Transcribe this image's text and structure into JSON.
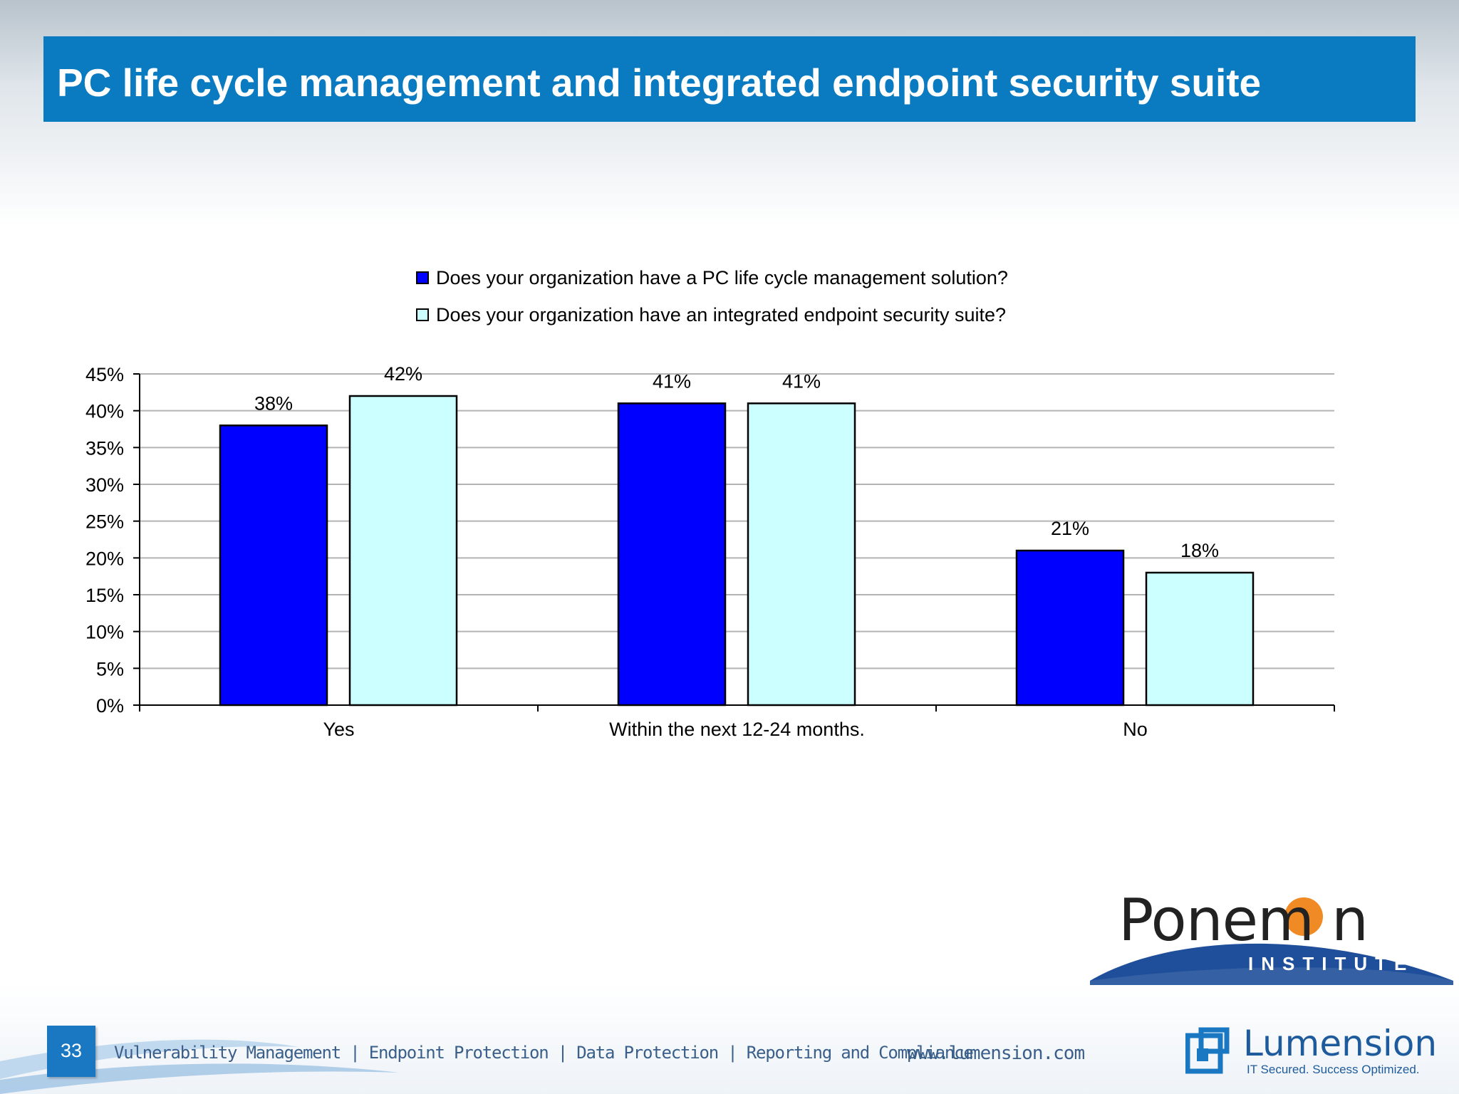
{
  "slide": {
    "title": "PC life cycle management and integrated endpoint security suite",
    "page_number": "33",
    "footer_tags": "Vulnerability Management | Endpoint Protection | Data Protection | Reporting and Compliance",
    "footer_url": "www.lumension.com",
    "colors": {
      "title_bar": "#0a7bc1",
      "series1": "#0000ff",
      "series2": "#ccffff"
    }
  },
  "logos": {
    "ponemon_word": "Ponem n",
    "ponemon_sub": "INSTITUTE",
    "lumension_word": "Lumension",
    "lumension_tagline": "IT Secured. Success Optimized."
  },
  "chart_data": {
    "type": "bar",
    "categories": [
      "Yes",
      "Within the next 12-24 months.",
      "No"
    ],
    "series": [
      {
        "name": "Does your organization have a PC life cycle management solution?",
        "values": [
          38,
          41,
          21
        ],
        "labels": [
          "38%",
          "41%",
          "21%"
        ],
        "color": "#0000ff"
      },
      {
        "name": "Does your organization have an integrated endpoint security suite?",
        "values": [
          42,
          41,
          18
        ],
        "labels": [
          "42%",
          "41%",
          "18%"
        ],
        "color": "#ccffff"
      }
    ],
    "ylim": [
      0,
      45
    ],
    "yticks": [
      "0%",
      "5%",
      "10%",
      "15%",
      "20%",
      "25%",
      "30%",
      "35%",
      "40%",
      "45%"
    ],
    "grid": true,
    "legend": "top"
  }
}
